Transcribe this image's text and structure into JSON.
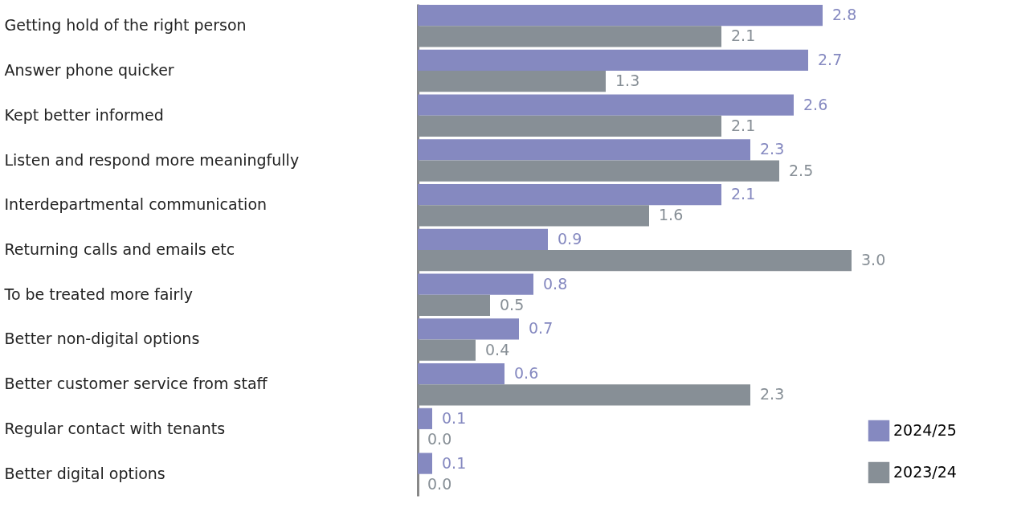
{
  "chart_data": {
    "type": "bar",
    "orientation": "horizontal",
    "legend": "bottom right",
    "categories": [
      "Getting hold of the right person",
      "Answer phone quicker",
      "Kept better informed",
      "Listen and respond more meaningfully",
      "Interdepartmental communication",
      "Returning calls and emails etc",
      "To be treated more fairly",
      "Better non-digital options",
      "Better customer service from staff",
      "Regular contact with tenants",
      "Better digital options"
    ],
    "series": [
      {
        "name": "2024/25",
        "color": "#8589c0",
        "values": [
          2.8,
          2.7,
          2.6,
          2.3,
          2.1,
          0.9,
          0.8,
          0.7,
          0.6,
          0.1,
          0.1
        ],
        "value_labels": [
          "2.8",
          "2.7",
          "2.6",
          "2.3",
          "2.1",
          "0.9",
          "0.8",
          "0.7",
          "0.6",
          "0.1",
          "0.1"
        ]
      },
      {
        "name": "2023/24",
        "color": "#878f96",
        "values": [
          2.1,
          1.3,
          2.1,
          2.5,
          1.6,
          3,
          0.5,
          0.4,
          2.3,
          0,
          0
        ],
        "value_labels": [
          "2.1",
          "1.3",
          "2.1",
          "2.5",
          "1.6",
          "3.0",
          "0.5",
          "0.4",
          "2.3",
          "0.0",
          "0.0"
        ]
      }
    ]
  }
}
